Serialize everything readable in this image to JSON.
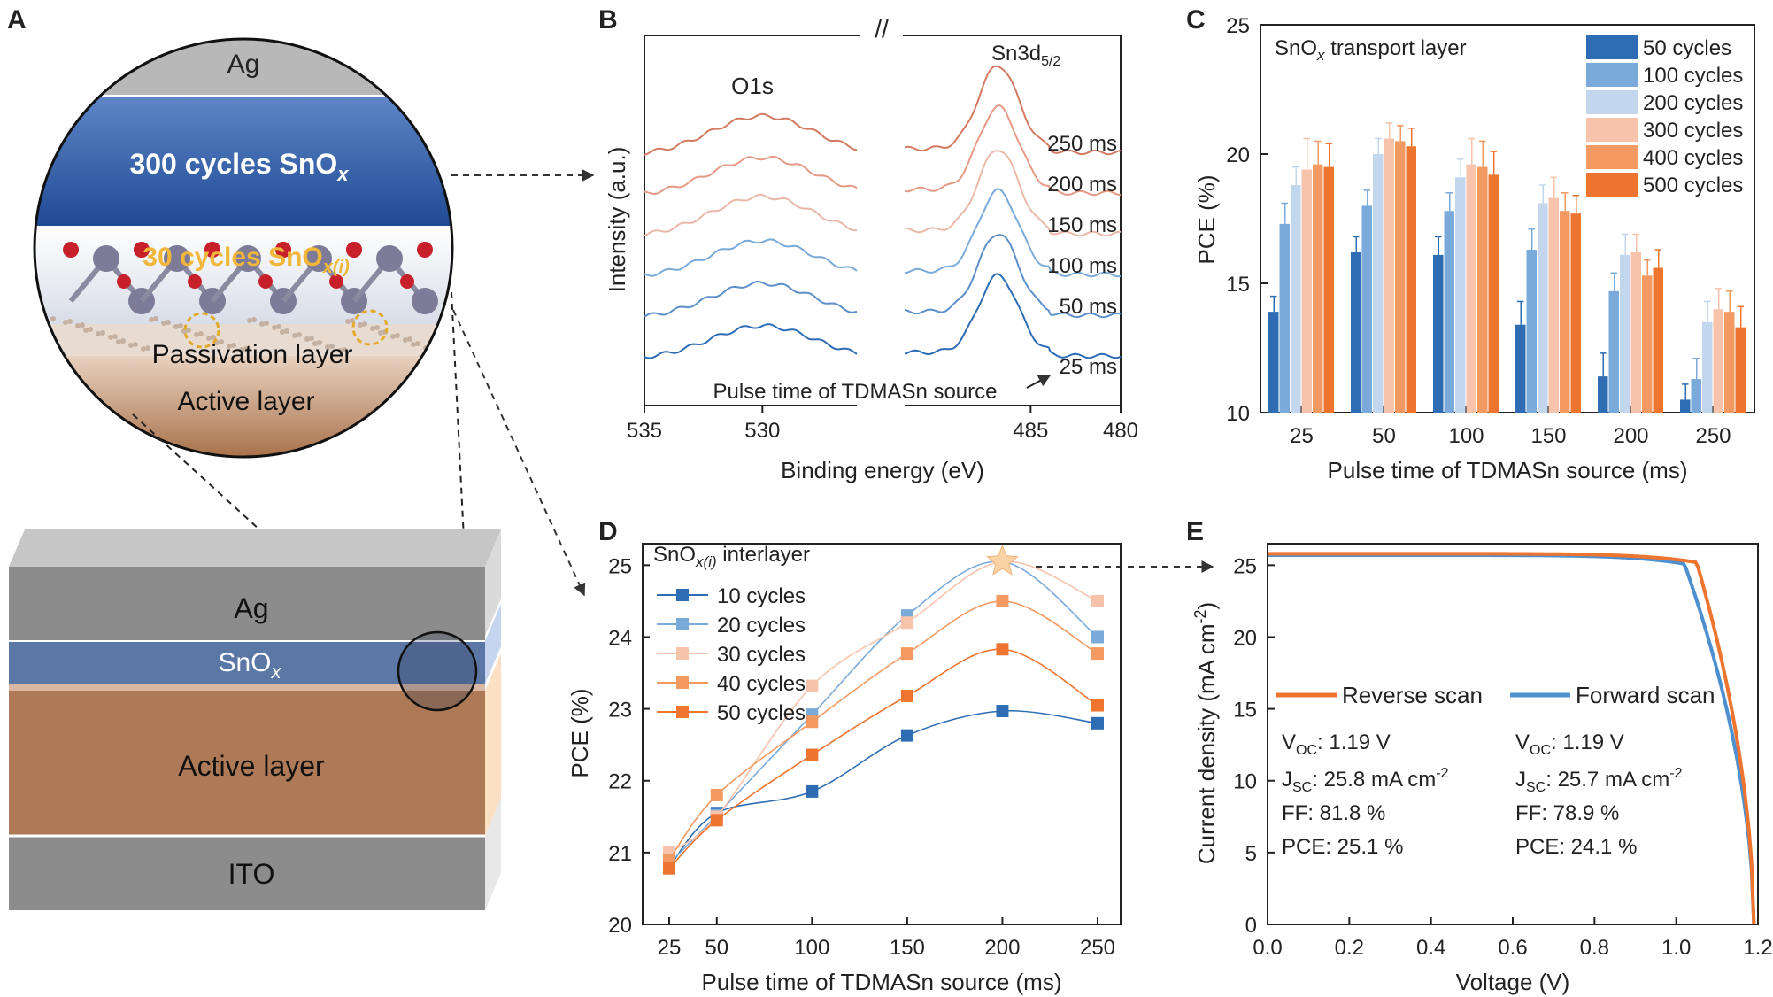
{
  "colors": {
    "c1": "#2e6db4",
    "c2": "#7aaad9",
    "c3": "#c2d7ee",
    "c4": "#f7c3ab",
    "c5": "#f29a62",
    "c6": "#ed7530",
    "grayLayer": "#909090",
    "sno": "#5a78a6",
    "active": "#b07a56"
  },
  "panelA": {
    "label": "A",
    "circle": {
      "ag": "Ag",
      "sno": "300 cycles SnO",
      "sno_sub": "x",
      "interlayer": "30 cycles SnO",
      "interlayer_sub": "x(i)",
      "passivation": "Passivation layer",
      "active": "Active layer"
    },
    "stack": {
      "ag": "Ag",
      "sno": "SnO",
      "sno_sub": "x",
      "active": "Active layer",
      "ito": "ITO"
    }
  },
  "chart_data": [
    {
      "panel": "B",
      "type": "line",
      "xlabel": "Binding energy (eV)",
      "ylabel": "Intensity (a.u.)",
      "break_symbol": "//",
      "peaks": {
        "o1s": "O1s",
        "sn_base": "Sn3d",
        "sn_sub": "5/2"
      },
      "left_ticks": [
        "535",
        "530"
      ],
      "right_ticks": [
        "485",
        "480"
      ],
      "left_xlim": [
        535,
        526
      ],
      "right_xlim": [
        492,
        480
      ],
      "o1s_center": 530,
      "sn_center": 486.8,
      "series": [
        {
          "name": "25 ms",
          "offset": 0,
          "o1s_height": 38,
          "sn_height": 140
        },
        {
          "name": "50 ms",
          "offset": 1,
          "o1s_height": 40,
          "sn_height": 143
        },
        {
          "name": "100 ms",
          "offset": 2,
          "o1s_height": 42,
          "sn_height": 146
        },
        {
          "name": "150 ms",
          "offset": 3,
          "o1s_height": 46,
          "sn_height": 148
        },
        {
          "name": "200 ms",
          "offset": 4,
          "o1s_height": 44,
          "sn_height": 150
        },
        {
          "name": "250 ms",
          "offset": 5,
          "o1s_height": 45,
          "sn_height": 152
        }
      ],
      "annotation": "Pulse time of TDMASn source"
    },
    {
      "panel": "C",
      "type": "bar",
      "title_base": "SnO",
      "title_sub": "x",
      "title_rest": " transport layer",
      "xlabel": "Pulse time of TDMASn source (ms)",
      "ylabel": "PCE (%)",
      "ylim": [
        10,
        25
      ],
      "yticks": [
        "10",
        "15",
        "20",
        "25"
      ],
      "categories": [
        "25",
        "50",
        "100",
        "150",
        "200",
        "250"
      ],
      "series": [
        {
          "name": "50 cycles",
          "values": [
            13.9,
            16.2,
            16.1,
            13.4,
            11.4,
            10.5
          ],
          "errors": [
            0.6,
            0.6,
            0.7,
            0.9,
            0.9,
            0.6
          ]
        },
        {
          "name": "100 cycles",
          "values": [
            17.3,
            18.0,
            17.8,
            16.3,
            14.7,
            11.3
          ],
          "errors": [
            0.8,
            0.6,
            0.7,
            0.8,
            0.7,
            0.8
          ]
        },
        {
          "name": "200 cycles",
          "values": [
            18.8,
            20.0,
            19.1,
            18.1,
            16.1,
            13.5
          ],
          "errors": [
            0.7,
            0.6,
            0.7,
            0.7,
            0.8,
            0.8
          ]
        },
        {
          "name": "300 cycles",
          "values": [
            19.4,
            20.6,
            19.6,
            18.3,
            16.2,
            14.0
          ],
          "errors": [
            1.2,
            0.6,
            1.0,
            0.8,
            0.7,
            0.8
          ]
        },
        {
          "name": "400 cycles",
          "values": [
            19.6,
            20.5,
            19.5,
            17.8,
            15.3,
            13.9
          ],
          "errors": [
            0.9,
            0.6,
            1.0,
            0.7,
            0.6,
            0.8
          ]
        },
        {
          "name": "500 cycles",
          "values": [
            19.5,
            20.3,
            19.2,
            17.7,
            15.6,
            13.3
          ],
          "errors": [
            0.9,
            0.7,
            0.9,
            0.7,
            0.7,
            0.8
          ]
        }
      ]
    },
    {
      "panel": "D",
      "type": "line",
      "title_base": "SnO",
      "title_sub": "x(i)",
      "title_rest": " interlayer",
      "xlabel": "Pulse time of TDMASn source (ms)",
      "ylabel": "PCE (%)",
      "ylim": [
        20,
        25.3
      ],
      "xlim": [
        25,
        250
      ],
      "yticks": [
        "20",
        "21",
        "22",
        "23",
        "24",
        "25"
      ],
      "x": [
        25,
        50,
        100,
        150,
        200,
        250
      ],
      "series": [
        {
          "name": "10 cycles",
          "values": [
            20.8,
            21.55,
            21.85,
            22.63,
            22.97,
            22.8
          ]
        },
        {
          "name": "20 cycles",
          "values": [
            20.85,
            21.52,
            22.92,
            24.3,
            25.05,
            24.0
          ]
        },
        {
          "name": "30 cycles",
          "values": [
            21.0,
            21.5,
            23.32,
            24.2,
            25.05,
            24.5
          ]
        },
        {
          "name": "40 cycles",
          "values": [
            20.9,
            21.8,
            22.82,
            23.77,
            24.5,
            23.77
          ]
        },
        {
          "name": "50 cycles",
          "values": [
            20.78,
            21.45,
            22.36,
            23.18,
            23.83,
            23.05
          ]
        }
      ]
    },
    {
      "panel": "E",
      "type": "line",
      "xlabel": "Voltage (V)",
      "ylabel_base": "Current density (mA cm",
      "ylabel_sup": "-2",
      "ylabel_end": ")",
      "xlim": [
        0,
        1.2
      ],
      "ylim": [
        0,
        26.5
      ],
      "xticks": [
        "0.0",
        "0.2",
        "0.4",
        "0.6",
        "0.8",
        "1.0",
        "1.2"
      ],
      "yticks": [
        "0",
        "5",
        "10",
        "15",
        "20",
        "25"
      ],
      "series": [
        {
          "name": "Reverse scan",
          "jsc": 25.8,
          "voc": 1.19,
          "knee": 1.05,
          "metrics": {
            "voc_label": "V",
            "voc_sub": "OC",
            "voc_value": ": 1.19 V",
            "jsc_label": "J",
            "jsc_sub": "SC",
            "jsc_value": ": 25.8 mA cm",
            "jsc_sup": "-2",
            "ff": "FF: 81.8 %",
            "pce": "PCE: 25.1 %"
          }
        },
        {
          "name": "Forward scan",
          "jsc": 25.7,
          "voc": 1.19,
          "knee": 1.02,
          "metrics": {
            "voc_label": "V",
            "voc_sub": "OC",
            "voc_value": ": 1.19 V",
            "jsc_label": "J",
            "jsc_sub": "SC",
            "jsc_value": ": 25.7 mA cm",
            "jsc_sup": "-2",
            "ff": "FF: 78.9 %",
            "pce": "PCE: 24.1 %"
          }
        }
      ]
    }
  ]
}
